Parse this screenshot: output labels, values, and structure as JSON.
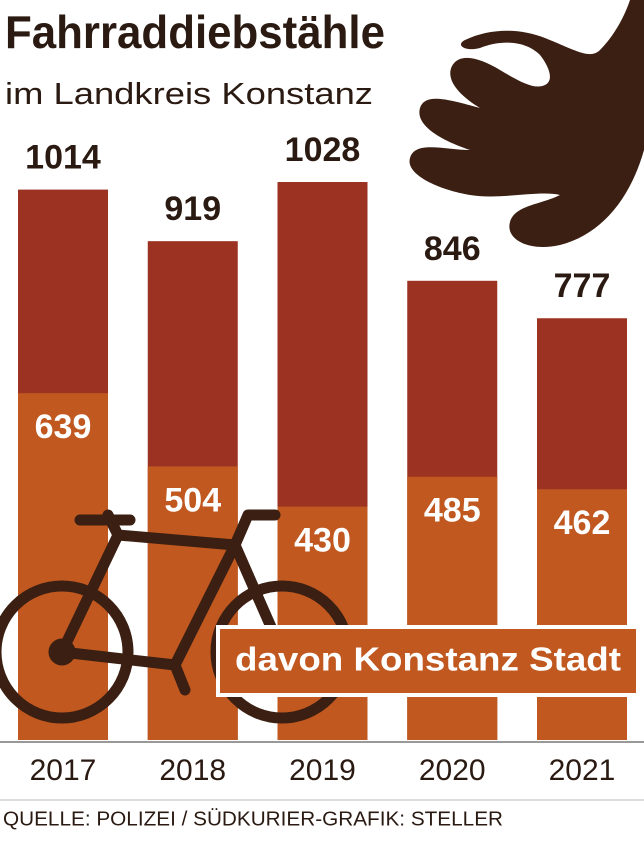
{
  "chart_data": {
    "type": "bar",
    "title": "Fahrraddiebstähle",
    "subtitle": "im Landkreis Konstanz",
    "categories": [
      "2017",
      "2018",
      "2019",
      "2020",
      "2021"
    ],
    "series": [
      {
        "color": "#9c3222",
        "values": [
          1014,
          919,
          1028,
          846,
          777
        ]
      },
      {
        "name": "davon Konstanz Stadt",
        "color": "#c0581f",
        "values": [
          639,
          504,
          430,
          485,
          462
        ]
      }
    ],
    "source": "QUELLE: POLIZEI / SÜDKURIER-GRAFIK: STELLER"
  }
}
